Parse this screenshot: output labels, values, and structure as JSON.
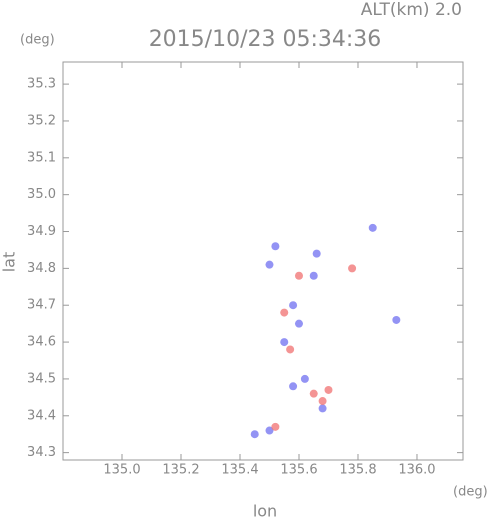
{
  "chart_data": {
    "type": "scatter",
    "title": "2015/10/23 05:34:36",
    "annotation": "ALT(km) 2.0",
    "y_unit": "(deg)",
    "x_unit": "(deg)",
    "x_label": "lon",
    "y_label": "lat",
    "xlim": [
      134.8,
      136.156
    ],
    "ylim": [
      34.28,
      35.36
    ],
    "xticks": [
      {
        "value": 135,
        "label": "135.0"
      },
      135.2,
      135.4,
      135.6,
      135.8,
      {
        "value": 136,
        "label": "136.0"
      }
    ],
    "yticks": [
      34.3,
      34.4,
      34.5,
      34.6,
      34.7,
      34.8,
      34.9,
      {
        "value": 35,
        "label": "35.0"
      },
      35.1,
      35.2,
      35.3
    ],
    "series": [
      {
        "color": "#6f6ff0",
        "x": [
          135.93,
          135.5,
          135.65,
          135.6,
          135.58,
          135.68,
          135.5,
          135.85,
          135.55,
          135.62,
          135.45,
          135.52,
          135.66,
          135.58
        ],
        "y": [
          34.66,
          34.81,
          34.78,
          34.65,
          34.48,
          34.42,
          34.36,
          34.91,
          34.6,
          34.5,
          34.35,
          34.86,
          34.84,
          34.7
        ]
      },
      {
        "color": "#f07070",
        "x": [
          135.78,
          135.65,
          135.57,
          135.52,
          135.6,
          135.68,
          135.55,
          135.7
        ],
        "y": [
          34.8,
          34.46,
          34.58,
          34.37,
          34.78,
          34.44,
          34.68,
          34.47
        ]
      }
    ]
  }
}
